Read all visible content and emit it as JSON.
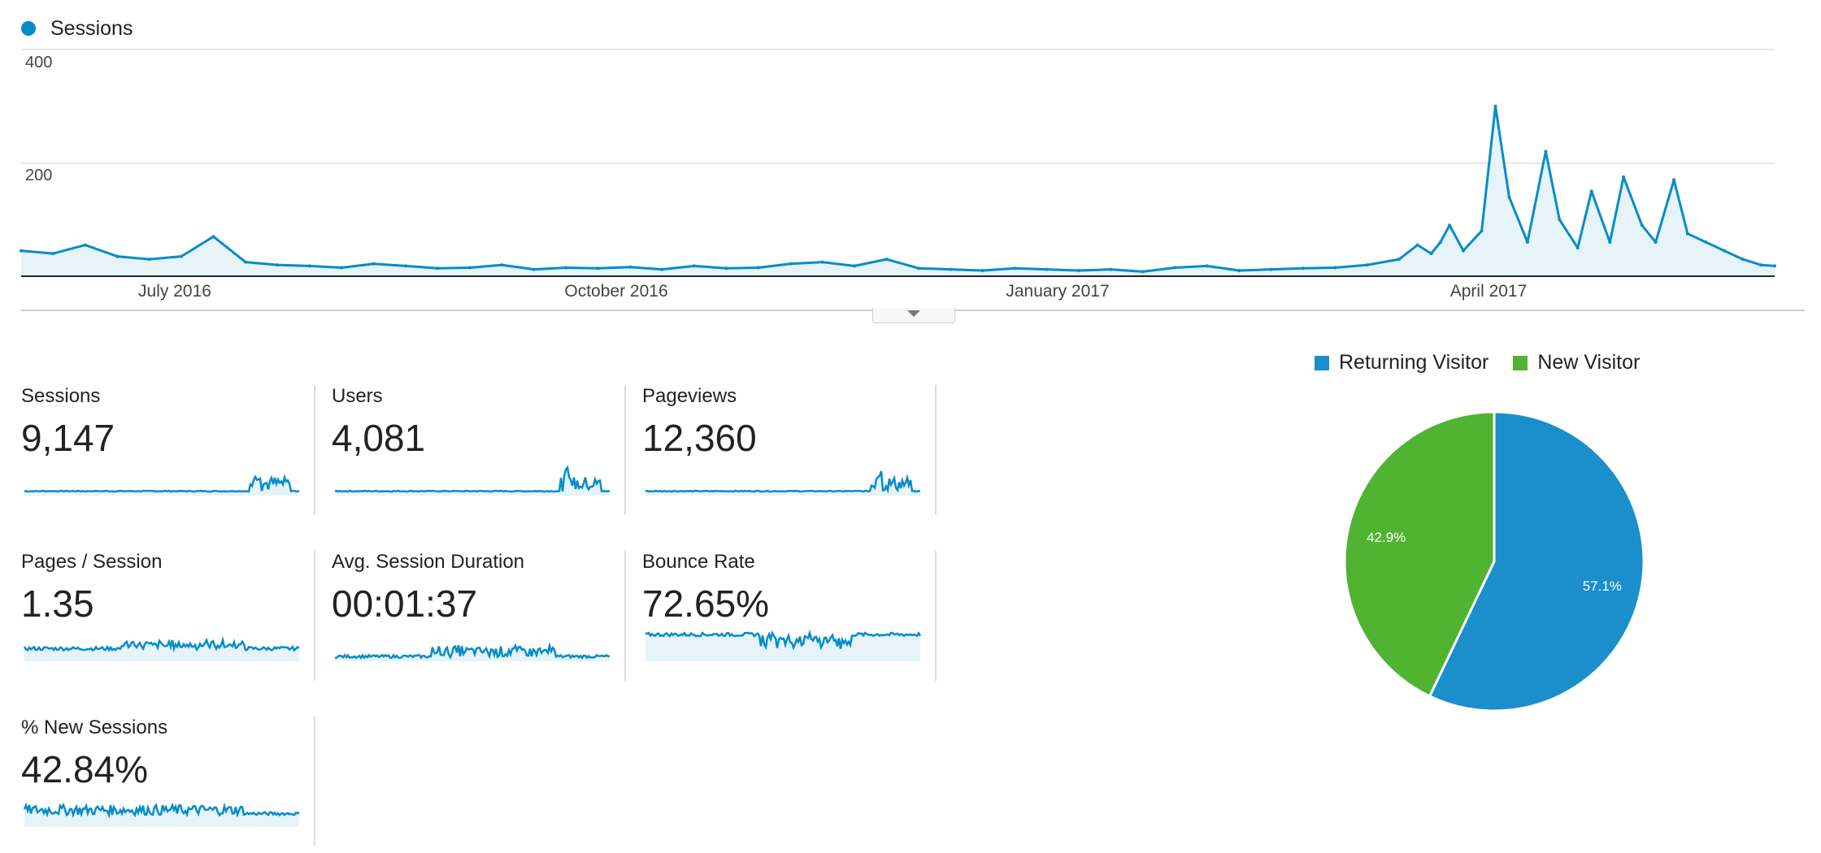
{
  "top_chart": {
    "legend_label": "Sessions",
    "y_ticks": [
      "400",
      "200"
    ],
    "x_ticks": [
      "July 2016",
      "October 2016",
      "January 2017",
      "April 2017"
    ]
  },
  "metrics": [
    {
      "label": "Sessions",
      "value": "9,147",
      "style": "spiky"
    },
    {
      "label": "Users",
      "value": "4,081",
      "style": "spiky"
    },
    {
      "label": "Pageviews",
      "value": "12,360",
      "style": "spiky"
    },
    {
      "label": "Pages / Session",
      "value": "1.35",
      "style": "noisy-low"
    },
    {
      "label": "Avg. Session Duration",
      "value": "00:01:37",
      "style": "noisy-bottom"
    },
    {
      "label": "Bounce Rate",
      "value": "72.65%",
      "style": "noisy-high"
    },
    {
      "label": "% New Sessions",
      "value": "42.84%",
      "style": "noisy-mid"
    }
  ],
  "colors": {
    "series": "#058dc7",
    "area": "#e6f3f9",
    "returning": "#1a8fcb",
    "new": "#50b432"
  },
  "chart_data": [
    {
      "type": "line",
      "title": "",
      "series": [
        {
          "name": "Sessions"
        }
      ],
      "xlabel": "",
      "ylabel": "",
      "ylim": [
        0,
        400
      ],
      "x_ticks": [
        "July 2016",
        "October 2016",
        "January 2017",
        "April 2017"
      ],
      "x": [
        "2016-05-28",
        "2016-06-04",
        "2016-06-11",
        "2016-06-18",
        "2016-06-25",
        "2016-07-02",
        "2016-07-09",
        "2016-07-16",
        "2016-07-23",
        "2016-07-30",
        "2016-08-06",
        "2016-08-13",
        "2016-08-20",
        "2016-08-27",
        "2016-09-03",
        "2016-09-10",
        "2016-09-17",
        "2016-09-24",
        "2016-10-01",
        "2016-10-08",
        "2016-10-15",
        "2016-10-22",
        "2016-10-29",
        "2016-11-05",
        "2016-11-12",
        "2016-11-19",
        "2016-11-26",
        "2016-12-03",
        "2016-12-10",
        "2016-12-17",
        "2016-12-24",
        "2016-12-31",
        "2017-01-07",
        "2017-01-14",
        "2017-01-21",
        "2017-01-28",
        "2017-02-04",
        "2017-02-11",
        "2017-02-18",
        "2017-02-25",
        "2017-03-04",
        "2017-03-11",
        "2017-03-18",
        "2017-03-25",
        "2017-03-29",
        "2017-04-01",
        "2017-04-03",
        "2017-04-05",
        "2017-04-08",
        "2017-04-12",
        "2017-04-15",
        "2017-04-18",
        "2017-04-22",
        "2017-04-26",
        "2017-04-29",
        "2017-05-03",
        "2017-05-06",
        "2017-05-10",
        "2017-05-13",
        "2017-05-17",
        "2017-05-20",
        "2017-05-24",
        "2017-05-27",
        "2017-05-31",
        "2017-06-04",
        "2017-06-08",
        "2017-06-12",
        "2017-06-15"
      ],
      "values": [
        45,
        40,
        55,
        35,
        30,
        35,
        70,
        25,
        20,
        18,
        15,
        22,
        18,
        14,
        15,
        20,
        12,
        15,
        14,
        16,
        12,
        18,
        14,
        15,
        22,
        25,
        18,
        30,
        14,
        12,
        10,
        14,
        12,
        10,
        12,
        8,
        15,
        18,
        10,
        12,
        14,
        15,
        20,
        30,
        55,
        40,
        60,
        90,
        45,
        80,
        300,
        140,
        60,
        220,
        100,
        50,
        150,
        60,
        175,
        90,
        60,
        170,
        75,
        60,
        45,
        30,
        20,
        18
      ]
    },
    {
      "type": "pie",
      "title": "",
      "categories": [
        "Returning Visitor",
        "New Visitor"
      ],
      "values": [
        57.1,
        42.9
      ],
      "labels": [
        "57.1%",
        "42.9%"
      ],
      "legend": "top"
    }
  ]
}
